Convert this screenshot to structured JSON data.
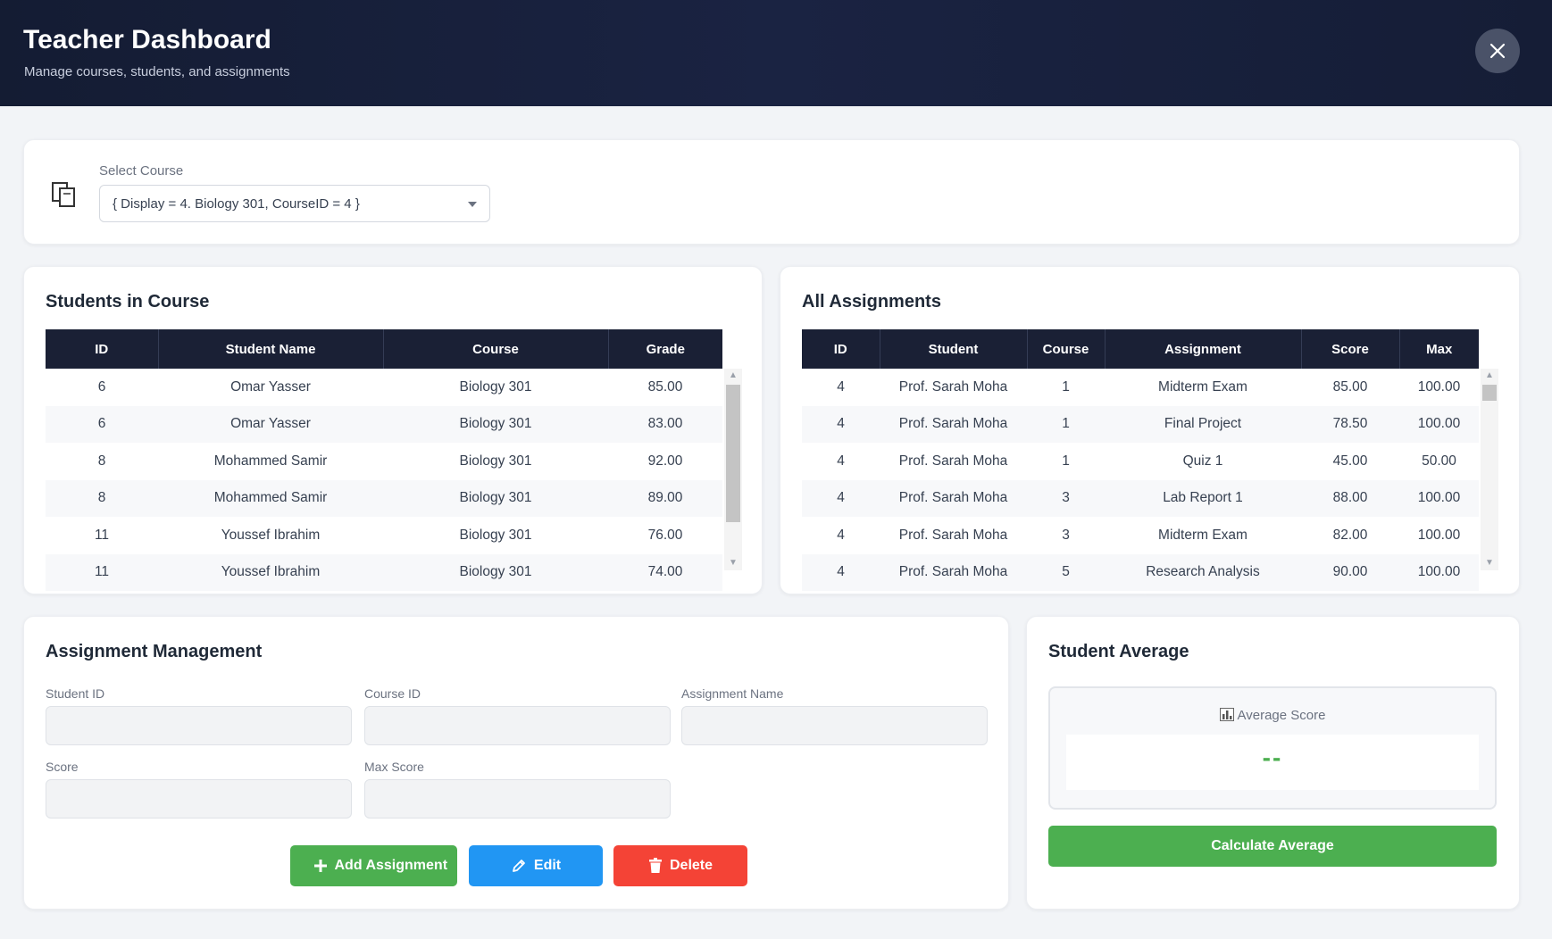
{
  "header": {
    "title": "Teacher Dashboard",
    "subtitle": "Manage courses, students, and assignments"
  },
  "course_select": {
    "label": "Select Course",
    "value": "{ Display = 4. Biology 301, CourseID = 4 }"
  },
  "students": {
    "title": "Students in Course",
    "columns": [
      "ID",
      "Student Name",
      "Course",
      "Grade"
    ],
    "rows": [
      [
        "6",
        "Omar Yasser",
        "Biology 301",
        "85.00"
      ],
      [
        "6",
        "Omar Yasser",
        "Biology 301",
        "83.00"
      ],
      [
        "8",
        "Mohammed Samir",
        "Biology 301",
        "92.00"
      ],
      [
        "8",
        "Mohammed Samir",
        "Biology 301",
        "89.00"
      ],
      [
        "11",
        "Youssef Ibrahim",
        "Biology 301",
        "76.00"
      ],
      [
        "11",
        "Youssef Ibrahim",
        "Biology 301",
        "74.00"
      ]
    ],
    "scroll_position": 0.0
  },
  "assignments": {
    "title": "All Assignments",
    "columns": [
      "ID",
      "Student",
      "Course",
      "Assignment",
      "Score",
      "Max"
    ],
    "rows": [
      [
        "4",
        "Prof. Sarah Moha",
        "1",
        "Midterm Exam",
        "85.00",
        "100.00"
      ],
      [
        "4",
        "Prof. Sarah Moha",
        "1",
        "Final Project",
        "78.50",
        "100.00"
      ],
      [
        "4",
        "Prof. Sarah Moha",
        "1",
        "Quiz 1",
        "45.00",
        "50.00"
      ],
      [
        "4",
        "Prof. Sarah Moha",
        "3",
        "Lab Report 1",
        "88.00",
        "100.00"
      ],
      [
        "4",
        "Prof. Sarah Moha",
        "3",
        "Midterm Exam",
        "82.00",
        "100.00"
      ],
      [
        "4",
        "Prof. Sarah Moha",
        "5",
        "Research Analysis",
        "90.00",
        "100.00"
      ]
    ]
  },
  "management": {
    "title": "Assignment Management",
    "student_id_label": "Student ID",
    "course_id_label": "Course ID",
    "assignment_name_label": "Assignment Name",
    "score_label": "Score",
    "max_score_label": "Max Score",
    "student_id_value": "",
    "course_id_value": "",
    "assignment_name_value": "",
    "score_value": "",
    "max_score_value": "",
    "add_label": "Add Assignment",
    "edit_label": "Edit",
    "delete_label": "Delete"
  },
  "average": {
    "title": "Student Average",
    "box_title": "Average Score",
    "value": "--",
    "button_label": "Calculate Average"
  },
  "icons": {
    "close": "close-icon",
    "course": "copy-icon",
    "add": "plus-icon",
    "edit": "pencil-icon",
    "delete": "trash-icon",
    "average": "bar-chart-icon"
  },
  "colors": {
    "header_bg": "#141c33",
    "table_header_bg": "#1a2035",
    "green": "#4caf50",
    "blue": "#2196f3",
    "red": "#f44336"
  }
}
